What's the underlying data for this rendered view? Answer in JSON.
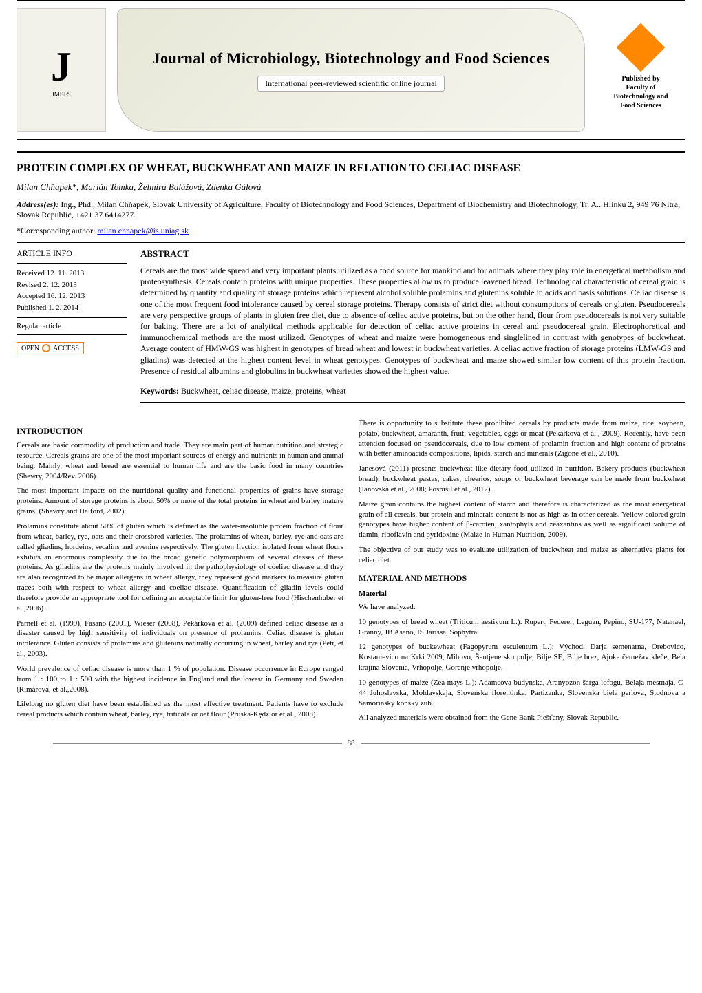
{
  "banner": {
    "logo_left_vertical": "JMBFS",
    "logo_left_label": "Journal of Microbiology, Biotechnology and Food Sciences",
    "journal_title": "Journal of Microbiology, Biotechnology and Food Sciences",
    "journal_subtitle": "International peer-reviewed scientific online journal",
    "published_by": "Published by",
    "faculty_line": "Faculty of",
    "bio_line": "Biotechnology and",
    "food_line": "Food Sciences"
  },
  "paper": {
    "title": "PROTEIN COMPLEX OF WHEAT, BUCKWHEAT AND MAIZE IN RELATION TO CELIAC DISEASE",
    "authors": "Milan Chňapek*, Marián Tomka, Želmíra Balážová, Zdenka Gálová",
    "address_label": "Address(es):",
    "address_text": " Ing., Phd., Milan Chňapek,\nSlovak University of Agriculture, Faculty of Biotechnology and Food Sciences, Department of Biochemistry and Biotechnology, Tr. A.. Hlinku 2, 949 76 Nitra, Slovak Republic, +421 37 6414277.",
    "corresponding_label": "*Corresponding author: ",
    "corresponding_email": "milan.chnapek@is.uniag.sk"
  },
  "article_info": {
    "heading": "ARTICLE INFO",
    "received": "Received 12. 11. 2013",
    "revised": "Revised 2. 12. 2013",
    "accepted": "Accepted 16. 12. 2013",
    "published": "Published 1. 2. 2014",
    "regular": "Regular article",
    "open_access_label": "OPEN",
    "open_access_label2": "ACCESS"
  },
  "abstract": {
    "heading": "ABSTRACT",
    "body": "Cereals are the most wide spread and very important plants utilized as a food source for mankind and for animals where they play role in energetical metabolism and proteosynthesis. Cereals contain proteins with unique properties. These properties allow us to produce leavened bread. Technological characteristic of cereal grain is determined by quantity and quality of storage proteins which represent alcohol soluble prolamins and glutenins soluble in acids and basis solutions. Celiac disease is one of the most frequent food intolerance caused by cereal storage proteins. Therapy consists of strict diet without consumptions of cereals or gluten. Pseudocereals are very perspective groups of plants in gluten free diet, due to absence of celiac active proteins, but on the other hand, flour from pseudocereals is not very suitable for baking. There are a lot of analytical methods applicable for detection of celiac active proteins in cereal and pseudocereal grain. Electrophoretical and immunochemical methods are the most utilized. Genotypes of wheat and maize were homogeneous and singlelined in contrast with genotypes of buckwheat. Average content of HMW-GS was highest in genotypes of bread wheat and lowest in buckwheat varieties. A celiac active fraction of storage proteins (LMW-GS and gliadins) was detected at the highest content level in wheat genotypes. Genotypes of buckwheat and maize showed similar low content of this protein fraction. Presence of residual albumins and globulins in buckwheat varieties showed the highest value.",
    "keywords_label": "Keywords:",
    "keywords_text": " Buckwheat, celiac disease, maize, proteins, wheat"
  },
  "body": {
    "intro_heading": "INTRODUCTION",
    "intro_p1": "Cereals are basic commodity of production and trade. They are main part of human nutrition and strategic resource. Cereals grains are one of the most important sources of energy and nutrients in human and animal being. Mainly, wheat and bread are essential to human life and are the basic food in many countries (Shewry, 2004/Rev. 2006).",
    "intro_p2": "The most important impacts on the nutritional quality and functional properties of grains have storage proteins. Amount of storage proteins is about 50% or more of the total proteins in wheat and barley mature grains. (Shewry and Halford, 2002).",
    "intro_p3": "Prolamins constitute about 50% of gluten which is defined as the water-insoluble protein fraction of flour from wheat, barley, rye, oats and their crossbred varieties. The prolamins of wheat, barley, rye and oats are called gliadins, hordeins, secalins and avenins respectively. The gluten fraction isolated from wheat flours exhibits an enormous complexity due to the broad genetic polymorphism of several classes of these proteins. As gliadins are the proteins mainly involved in the pathophysiology of coeliac disease and they are also recognized to be major allergens in wheat allergy, they represent good markers to measure gluten traces both with respect to wheat allergy and coeliac disease. Quantification of gliadin levels could therefore provide an appropriate tool for defining an acceptable limit for gluten-free food (Hischenhuber et al.,2006) .",
    "intro_p4": "Parnell et al. (1999), Fasano (2001), Wieser (2008), Pekárková et al. (2009) defined celiac disease as a disaster caused by high sensitivity of individuals on presence of prolamins. Celiac disease is gluten intolerance. Gluten consists of prolamins and glutenins naturally occurring in wheat, barley and rye (Petr, et al., 2003).",
    "intro_p5": "World prevalence of celiac disease is more than 1 % of population. Disease occurrence in Europe ranged from 1 : 100 to 1 : 500 with the highest incidence in England and the lowest in Germany and Sweden (Rimárová, et al.,2008).",
    "intro_p6": "Lifelong no gluten diet have been established as the most effective treatment. Patients have to exclude cereal products which contain wheat, barley, rye, triticale or oat flour (Pruska-Kędzior et al., 2008).",
    "intro_p7": "There is opportunity to substitute these prohibited cereals by products made from maize, rice, soybean, potato, buckwheat, amaranth, fruit, vegetables, eggs or meat (Pekárková et al., 2009). Recently, have been attention focused on pseudocereals, due to low content of prolamin fraction and high content of proteins with better aminoacids compositions, lipids, starch and minerals (Zigone et al., 2010).",
    "col2_p1": "Janesová (2011) presents buckwheat like dietary food utilized in nutrition. Bakery products (buckwheat bread), buckwheat pastas, cakes, cheerios, soups or buckwheat beverage can be made from buckwheat (Janovská et al., 2008; Pospíšil et al., 2012).",
    "col2_p2": "Maize grain contains the highest content of starch and therefore is characterized as the most energetical grain of all cereals, but protein and minerals content is not as high as in other cereals. Yellow colored grain genotypes have higher content of β-caroten, xantophyls and zeaxantins as well as significant volume of tiamin, riboflavin and pyridoxine (Maize in Human Nutrition, 2009).",
    "col2_p3": "The objective of our study was to evaluate utilization of buckwheat and maize as alternative plants for celiac diet.",
    "mm_heading": "MATERIAL AND METHODS",
    "mat_heading": "Material",
    "mat_p1": "We have analyzed:",
    "mat_p2": "10 genotypes of bread wheat (Triticum aestivum L.): Rupert, Federer, Leguan, Pepino, SU-177, Natanael, Granny, JB Asano, IS Jarissa, Sophytra",
    "mat_p3": "12 genotypes of buckewheat (Fagopyrum esculentum L.): Východ, Darja semenarna, Orebovico, Kostanjevico na Krki 2009, Mihovo, Šentjenersko polje, Bilje SE, Bilje brez, Ajoke čemežav kleče, Bela krajina Slovenia, Vrhopolje, Gorenje vrhopolje.",
    "mat_p4": "10 genotypes of maize (Zea mays L.): Adamcova budynska, Aranyozon šarga lofogu, Belaja mestnaja, C-44 Juhoslavska, Moldavskaja, Slovenska florentinka, Partizanka, Slovenska biela perlova, Stodnova a Samorinsky konsky zub.",
    "mat_p5": "All analyzed materials were obtained from the Gene Bank Piešťany, Slovak Republic."
  },
  "footer": {
    "page_number": "88"
  },
  "colors": {
    "text": "#000000",
    "link": "#0000ee",
    "oa_orange": "#f58220",
    "banner_bg": "#f2f2ea"
  }
}
